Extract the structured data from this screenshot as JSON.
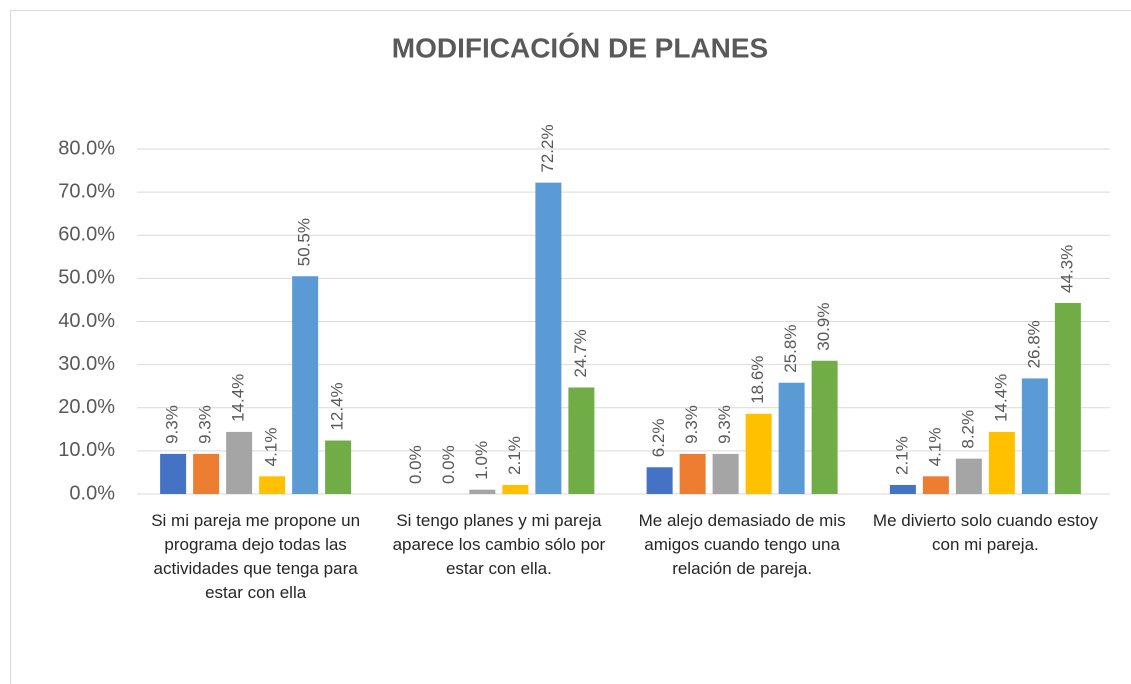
{
  "chart_data": {
    "type": "bar",
    "title": "MODIFICACIÓN DE PLANES",
    "categories": [
      "Si mi pareja me propone un programa dejo todas las actividades que tenga para estar con ella",
      "Si tengo planes y mi pareja aparece los cambio sólo por estar con ella.",
      "Me alejo demasiado de mis amigos cuando tengo una relación de pareja.",
      "Me divierto solo cuando estoy con mi pareja."
    ],
    "series": [
      {
        "color": "#4472c4",
        "values": [
          9.3,
          0.0,
          6.2,
          2.1
        ],
        "value_labels": [
          "9.3%",
          "0.0%",
          "6.2%",
          "2.1%"
        ]
      },
      {
        "color": "#ed7d31",
        "values": [
          9.3,
          0.0,
          9.3,
          4.1
        ],
        "value_labels": [
          "9.3%",
          "0.0%",
          "9.3%",
          "4.1%"
        ]
      },
      {
        "color": "#a5a5a5",
        "values": [
          14.4,
          1.0,
          9.3,
          8.2
        ],
        "value_labels": [
          "14.4%",
          "1.0%",
          "9.3%",
          "8.2%"
        ]
      },
      {
        "color": "#ffc000",
        "values": [
          4.1,
          2.1,
          18.6,
          14.4
        ],
        "value_labels": [
          "4.1%",
          "2.1%",
          "18.6%",
          "14.4%"
        ]
      },
      {
        "color": "#5b9bd5",
        "values": [
          50.5,
          72.2,
          25.8,
          26.8
        ],
        "value_labels": [
          "50.5%",
          "72.2%",
          "25.8%",
          "26.8%"
        ]
      },
      {
        "color": "#70ad47",
        "values": [
          12.4,
          24.7,
          30.9,
          44.3
        ],
        "value_labels": [
          "12.4%",
          "24.7%",
          "30.9%",
          "44.3%"
        ]
      }
    ],
    "ylim": [
      0,
      80
    ],
    "yticks": [
      {
        "value": 0,
        "label": "0.0%"
      },
      {
        "value": 10,
        "label": "10.0%"
      },
      {
        "value": 20,
        "label": "20.0%"
      },
      {
        "value": 30,
        "label": "30.0%"
      },
      {
        "value": 40,
        "label": "40.0%"
      },
      {
        "value": 50,
        "label": "50.0%"
      },
      {
        "value": 60,
        "label": "60.0%"
      },
      {
        "value": 70,
        "label": "70.0%"
      },
      {
        "value": 80,
        "label": "80.0%"
      }
    ],
    "grid": true
  }
}
